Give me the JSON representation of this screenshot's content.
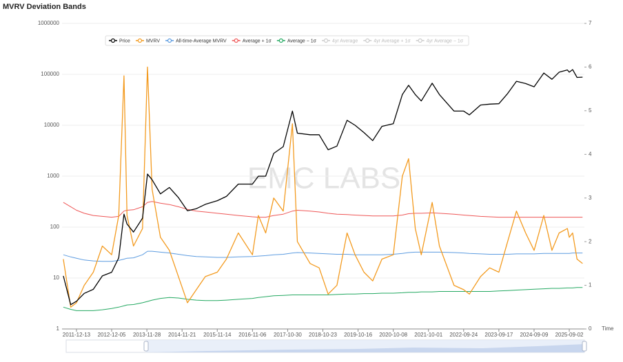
{
  "chart_data": {
    "type": "line",
    "title": "MVRV Deviation Bands",
    "watermark": "EMC LABS",
    "x_label": "Time",
    "x": [
      "2011-08-01",
      "2011-10-15",
      "2011-12-13",
      "2012-03-01",
      "2012-06-01",
      "2012-09-01",
      "2012-12-05",
      "2013-02-15",
      "2013-04-09",
      "2013-05-10",
      "2013-07-15",
      "2013-10-15",
      "2013-12-04",
      "2014-01-20",
      "2014-04-15",
      "2014-07-15",
      "2014-10-15",
      "2015-01-15",
      "2015-04-15",
      "2015-07-15",
      "2015-11-14",
      "2016-02-15",
      "2016-06-15",
      "2016-11-06",
      "2017-01-05",
      "2017-03-20",
      "2017-06-10",
      "2017-09-15",
      "2017-12-17",
      "2018-02-06",
      "2018-06-15",
      "2018-09-15",
      "2018-12-15",
      "2019-03-15",
      "2019-06-26",
      "2019-09-15",
      "2019-12-15",
      "2020-03-13",
      "2020-06-15",
      "2020-10-08",
      "2021-01-08",
      "2021-03-13",
      "2021-05-20",
      "2021-07-20",
      "2021-11-08",
      "2022-01-20",
      "2022-06-18",
      "2022-09-24",
      "2022-11-21",
      "2023-03-15",
      "2023-06-15",
      "2023-09-17",
      "2023-12-15",
      "2024-03-14",
      "2024-06-15",
      "2024-09-09",
      "2024-12-17",
      "2025-03-10",
      "2025-05-22",
      "2025-08-14",
      "2025-09-02",
      "2025-10-06",
      "2025-11-20",
      "2026-01-15"
    ],
    "xlim": [
      "2011-07-19",
      "2026-02-03"
    ],
    "xticks": [
      "2011-12-13",
      "2012-12-05",
      "2013-11-28",
      "2014-11-21",
      "2015-11-14",
      "2016-11-06",
      "2017-10-30",
      "2018-10-23",
      "2019-10-16",
      "2020-10-08",
      "2021-10-01",
      "2022-09-24",
      "2023-09-17",
      "2024-09-09",
      "2025-09-02"
    ],
    "ylog": true,
    "ylim": [
      1,
      1000000
    ],
    "yticks": [
      1,
      10,
      100,
      1000,
      10000,
      100000,
      1000000
    ],
    "y2lim": [
      0,
      7
    ],
    "y2ticks": [
      0,
      1,
      2,
      3,
      4,
      5,
      6,
      7
    ],
    "grid": true,
    "series": [
      {
        "name": "Price",
        "color": "#000000",
        "values": [
          11,
          3,
          3.5,
          5,
          6,
          11,
          13,
          25,
          180,
          115,
          80,
          150,
          1100,
          850,
          450,
          600,
          380,
          210,
          230,
          280,
          330,
          400,
          700,
          700,
          1000,
          1000,
          2800,
          3800,
          19000,
          7000,
          6500,
          6500,
          3300,
          3900,
          12500,
          10000,
          7200,
          5000,
          9500,
          10700,
          40000,
          61000,
          40000,
          30000,
          67000,
          40000,
          19000,
          19000,
          16000,
          25000,
          26000,
          26500,
          42000,
          73000,
          66000,
          57000,
          106000,
          80000,
          110000,
          122000,
          110000,
          124000,
          87000,
          88000
        ]
      },
      {
        "name": "MVRV",
        "color": "#f39a1e",
        "axis": "y2",
        "values": [
          1.6,
          0.5,
          0.6,
          1.0,
          1.3,
          1.9,
          1.7,
          2.6,
          5.8,
          2.6,
          1.9,
          2.3,
          6.0,
          3.2,
          2.1,
          1.8,
          1.2,
          0.6,
          0.9,
          1.2,
          1.3,
          1.6,
          2.2,
          1.7,
          2.6,
          2.2,
          3.0,
          2.7,
          4.7,
          2.0,
          1.5,
          1.4,
          0.8,
          1.0,
          2.2,
          1.7,
          1.3,
          1.1,
          1.6,
          1.7,
          3.5,
          3.9,
          2.3,
          1.7,
          2.9,
          1.9,
          1.0,
          0.9,
          0.8,
          1.2,
          1.4,
          1.3,
          2.0,
          2.7,
          2.2,
          1.8,
          2.6,
          1.8,
          2.2,
          2.3,
          2.1,
          2.2,
          1.6,
          1.5
        ]
      },
      {
        "name": "All-time-Average MVRV",
        "color": "#5b9be0",
        "axis": "y2",
        "values": [
          1.7,
          1.65,
          1.62,
          1.58,
          1.56,
          1.55,
          1.55,
          1.57,
          1.6,
          1.62,
          1.63,
          1.7,
          1.78,
          1.78,
          1.76,
          1.74,
          1.71,
          1.68,
          1.66,
          1.65,
          1.64,
          1.64,
          1.65,
          1.66,
          1.67,
          1.68,
          1.7,
          1.71,
          1.74,
          1.75,
          1.74,
          1.73,
          1.72,
          1.71,
          1.71,
          1.7,
          1.7,
          1.7,
          1.7,
          1.71,
          1.73,
          1.75,
          1.76,
          1.76,
          1.76,
          1.76,
          1.75,
          1.74,
          1.73,
          1.72,
          1.71,
          1.71,
          1.71,
          1.72,
          1.72,
          1.72,
          1.73,
          1.73,
          1.73,
          1.73,
          1.73,
          1.74,
          1.74,
          1.74
        ]
      },
      {
        "name": "Average + 1σ",
        "color": "#ee5555",
        "axis": "y2",
        "values": [
          2.9,
          2.8,
          2.72,
          2.65,
          2.6,
          2.58,
          2.56,
          2.58,
          2.7,
          2.72,
          2.73,
          2.8,
          2.9,
          2.92,
          2.88,
          2.85,
          2.8,
          2.74,
          2.7,
          2.68,
          2.65,
          2.63,
          2.6,
          2.57,
          2.56,
          2.56,
          2.6,
          2.63,
          2.7,
          2.72,
          2.7,
          2.68,
          2.65,
          2.63,
          2.62,
          2.61,
          2.6,
          2.59,
          2.59,
          2.59,
          2.61,
          2.64,
          2.65,
          2.65,
          2.66,
          2.65,
          2.63,
          2.61,
          2.6,
          2.58,
          2.57,
          2.56,
          2.56,
          2.56,
          2.56,
          2.56,
          2.56,
          2.56,
          2.56,
          2.56,
          2.56,
          2.56,
          2.56,
          2.56
        ]
      },
      {
        "name": "Average − 1σ",
        "color": "#22a860",
        "axis": "y2",
        "values": [
          0.5,
          0.45,
          0.42,
          0.42,
          0.42,
          0.44,
          0.47,
          0.5,
          0.53,
          0.55,
          0.56,
          0.6,
          0.63,
          0.66,
          0.7,
          0.72,
          0.71,
          0.68,
          0.66,
          0.65,
          0.65,
          0.66,
          0.68,
          0.7,
          0.72,
          0.74,
          0.76,
          0.77,
          0.78,
          0.78,
          0.78,
          0.78,
          0.78,
          0.79,
          0.8,
          0.8,
          0.81,
          0.81,
          0.82,
          0.82,
          0.83,
          0.84,
          0.84,
          0.85,
          0.85,
          0.86,
          0.86,
          0.86,
          0.86,
          0.86,
          0.86,
          0.87,
          0.88,
          0.89,
          0.9,
          0.91,
          0.92,
          0.93,
          0.93,
          0.94,
          0.94,
          0.94,
          0.95,
          0.95
        ]
      }
    ],
    "hidden_series": [
      {
        "name": "4yr Average"
      },
      {
        "name": "4yr Average + 1σ"
      },
      {
        "name": "4yr Average − 1σ"
      }
    ]
  }
}
